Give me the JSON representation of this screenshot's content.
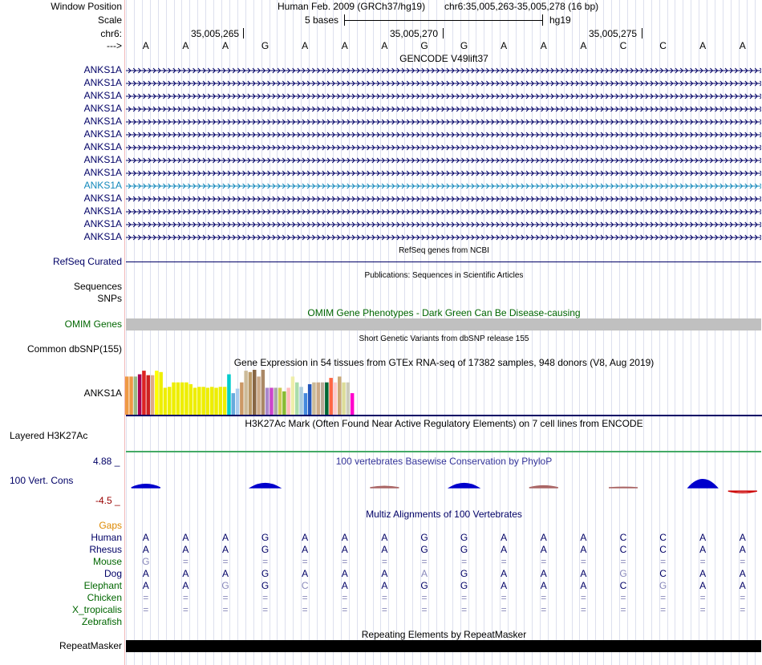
{
  "header": {
    "window_position_label": "Window Position",
    "assembly": "Human Feb. 2009 (GRCh37/hg19)",
    "position": "chr6:35,005,263-35,005,278 (16 bp)",
    "scale_label": "Scale",
    "scale_text": "5 bases",
    "scale_db": "hg19",
    "chrom_label": "chr6:",
    "tick_labels": [
      "35,005,265",
      "35,005,270",
      "35,005,275"
    ],
    "strand_label": "--->"
  },
  "sequence": [
    "A",
    "A",
    "A",
    "G",
    "A",
    "A",
    "A",
    "G",
    "G",
    "A",
    "A",
    "A",
    "C",
    "C",
    "A",
    "A"
  ],
  "gencode": {
    "title": "GENCODE V49lift37",
    "transcripts": [
      "ANKS1A",
      "ANKS1A",
      "ANKS1A",
      "ANKS1A",
      "ANKS1A",
      "ANKS1A",
      "ANKS1A",
      "ANKS1A",
      "ANKS1A",
      "ANKS1A",
      "ANKS1A",
      "ANKS1A",
      "ANKS1A",
      "ANKS1A"
    ],
    "highlighted_index": 9
  },
  "refseq": {
    "title": "RefSeq genes from NCBI",
    "label": "RefSeq Curated"
  },
  "publications": {
    "title": "Publications: Sequences in Scientific Articles",
    "label1": "Sequences",
    "label2": "SNPs"
  },
  "omim": {
    "title": "OMIM Gene Phenotypes - Dark Green Can Be Disease-causing",
    "label": "OMIM Genes"
  },
  "dbsnp": {
    "title": "Short Genetic Variants from dbSNP release 155",
    "label": "Common dbSNP(155)"
  },
  "gtex": {
    "title": "Gene Expression in 54 tissues from GTEx RNA-seq of 17382 samples, 948 donors (V8, Aug 2019)",
    "label": "ANKS1A",
    "tissue_levels": [
      0.85,
      0.85,
      0.85,
      0.9,
      0.98,
      0.88,
      0.88,
      0.98,
      0.95,
      0.6,
      0.62,
      0.72,
      0.72,
      0.72,
      0.72,
      0.68,
      0.6,
      0.62,
      0.62,
      0.6,
      0.62,
      0.6,
      0.62,
      0.62,
      0.9,
      0.48,
      0.58,
      0.72,
      0.98,
      0.95,
      1.0,
      0.85,
      1.0,
      0.6,
      0.6,
      0.6,
      0.6,
      0.52,
      0.6,
      0.85,
      0.72,
      0.62,
      0.48,
      0.68,
      0.72,
      0.72,
      0.72,
      0.72,
      0.82,
      0.72,
      0.85,
      0.72,
      0.72,
      0.48
    ],
    "tissue_colors": [
      "#ee9944",
      "#ee9944",
      "#99bb88",
      "#aa0055",
      "#dd2222",
      "#cc2222",
      "#ddaa88",
      "#ffff00",
      "#eeee00",
      "#eeee00",
      "#eeee00",
      "#eeee00",
      "#eeee00",
      "#eeee00",
      "#eeee00",
      "#eeee00",
      "#eeee00",
      "#eeee00",
      "#eeee00",
      "#eeee00",
      "#eeee00",
      "#eeee00",
      "#eeee00",
      "#eeee00",
      "#00cccc",
      "#66aadd",
      "#aaccee",
      "#cc9966",
      "#ccbb99",
      "#bb9966",
      "#886644",
      "#ccaa88",
      "#aa8866",
      "#aa88cc",
      "#cc44cc",
      "#aaaaaa",
      "#cccc55",
      "#88bb33",
      "#ffbbbb",
      "#eeeeaa",
      "#aaddaa",
      "#aaccdd",
      "#4488dd",
      "#2255bb",
      "#ccbb99",
      "#ccaa88",
      "#bbaa99",
      "#006633",
      "#ff6644",
      "#ffcccc",
      "#ccaa77",
      "#dddd99",
      "#ccccbb",
      "#ff00cc"
    ]
  },
  "h3k27ac": {
    "title": "H3K27Ac Mark (Often Found Near Active Regulatory Elements) on 7 cell lines from ENCODE",
    "label": "Layered H3K27Ac"
  },
  "phylop": {
    "title": "100 vertebrates Basewise Conservation by PhyloP",
    "label": "100 Vert. Cons",
    "max_label": "4.88 _",
    "min_label": "-4.5 _",
    "scores": [
      0.35,
      0,
      0,
      0.45,
      0,
      0,
      0.15,
      0,
      0.45,
      0,
      0.2,
      0,
      0.05,
      0,
      0.85,
      -0.35
    ]
  },
  "multiz": {
    "title": "Multiz Alignments of 100 Vertebrates",
    "gaps_label": "Gaps",
    "species": [
      {
        "name": "Human",
        "row": [
          "A",
          "A",
          "A",
          "G",
          "A",
          "A",
          "A",
          "G",
          "G",
          "A",
          "A",
          "A",
          "C",
          "C",
          "A",
          "A"
        ]
      },
      {
        "name": "Rhesus",
        "row": [
          "A",
          "A",
          "A",
          "G",
          "A",
          "A",
          "A",
          "G",
          "G",
          "A",
          "A",
          "A",
          "C",
          "C",
          "A",
          "A"
        ]
      },
      {
        "name": "Mouse",
        "row": [
          "G",
          "=",
          "=",
          "=",
          "=",
          "=",
          "=",
          "=",
          "=",
          "=",
          "=",
          "=",
          "=",
          "=",
          "=",
          "="
        ]
      },
      {
        "name": "Dog",
        "row": [
          "A",
          "A",
          "A",
          "G",
          "A",
          "A",
          "A",
          "A",
          "G",
          "A",
          "A",
          "A",
          "G",
          "C",
          "A",
          "A"
        ]
      },
      {
        "name": "Elephant",
        "row": [
          "A",
          "A",
          "G",
          "G",
          "C",
          "A",
          "A",
          "G",
          "G",
          "A",
          "A",
          "A",
          "C",
          "G",
          "A",
          "A"
        ]
      },
      {
        "name": "Chicken",
        "row": [
          "=",
          "=",
          "=",
          "=",
          "=",
          "=",
          "=",
          "=",
          "=",
          "=",
          "=",
          "=",
          "=",
          "=",
          "=",
          "="
        ]
      },
      {
        "name": "X_tropicalis",
        "row": [
          "=",
          "=",
          "=",
          "=",
          "=",
          "=",
          "=",
          "=",
          "=",
          "=",
          "=",
          "=",
          "=",
          "=",
          "=",
          "="
        ]
      },
      {
        "name": "Zebrafish",
        "row": [
          "",
          "",
          "",
          "",
          "",
          "",
          "",
          "",
          "",
          "",
          "",
          "",
          "",
          "",
          "",
          ""
        ]
      }
    ],
    "mismatch_color": "#8888bb",
    "match_color": "#000066"
  },
  "repeatmasker": {
    "title": "Repeating Elements by RepeatMasker",
    "label": "RepeatMasker"
  },
  "colors": {
    "navy": "#000066",
    "green": "#006600",
    "gaps_orange": "#dd8800",
    "phylop_pos": "#0000cc",
    "phylop_neg": "#cc0000",
    "omim_bar": "#c0c0c0",
    "h3k27ac_line": "#44aa66",
    "highlight_transcript": "#1188bb"
  }
}
